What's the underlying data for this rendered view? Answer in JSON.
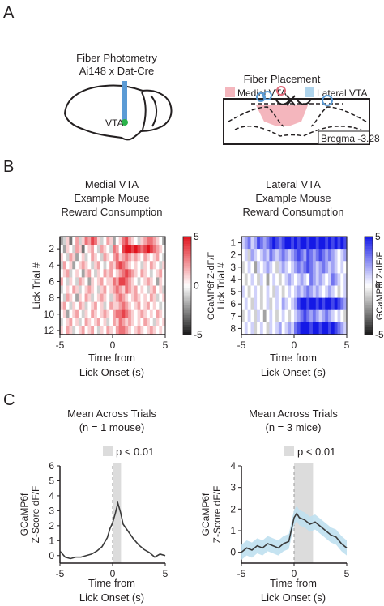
{
  "panels": {
    "a": "A",
    "b": "B",
    "c": "C"
  },
  "panel_a": {
    "fiber_title_1": "Fiber Photometry",
    "fiber_title_2": "Ai148 x Dat-Cre",
    "vta_label": "VTA",
    "placement_title": "Fiber Placement",
    "legend_medial": "Medial VTA",
    "legend_lateral": "Lateral VTA",
    "bregma": "Bregma -3.28",
    "colors": {
      "medial": "#f4b6bd",
      "lateral": "#aed4ec",
      "fiber": "#5b9bd5",
      "vta_dot": "#2bb34a"
    }
  },
  "panel_b": {
    "left_title": [
      "Medial VTA",
      "Example Mouse",
      "Reward Consumption"
    ],
    "right_title": [
      "Lateral VTA",
      "Example Mouse",
      "Reward Consumption"
    ],
    "xlabel_1": "Time from",
    "xlabel_2": "Lick Onset (s)",
    "ylabel": "Lick Trial #",
    "cbar_label": "GCaMP6f  Z-dF/F"
  },
  "panel_c": {
    "left_title": [
      "Mean Across Trials",
      "(n = 1 mouse)"
    ],
    "right_title": [
      "Mean Across Trials",
      "(n = 3 mice)"
    ],
    "sig_label": "p < 0.01",
    "ylabel_1": "GCaMP6f",
    "ylabel_2": "Z-Score dF/F",
    "xlabel_1": "Time from",
    "xlabel_2": "Lick Onset (s)"
  },
  "chart_data": [
    {
      "type": "heatmap",
      "x": [
        -5,
        5
      ],
      "xticks": [
        -5,
        0,
        5
      ],
      "yticks": [
        2,
        4,
        6,
        8,
        10,
        12
      ],
      "rows": 12,
      "cbar_ticks": [
        5,
        0,
        -5
      ],
      "colormap": "gray-white-red",
      "rows_data": [
        [
          -2,
          -1,
          1,
          -3,
          0,
          2,
          -1,
          1,
          3,
          2,
          4,
          3,
          1,
          -1,
          0,
          2,
          1,
          -2,
          0,
          1,
          3,
          4,
          2,
          1,
          0,
          -1,
          1,
          2,
          3,
          3,
          2,
          1,
          0,
          -2
        ],
        [
          0,
          -2,
          1,
          0,
          -1,
          2,
          1,
          -3,
          0,
          1,
          2,
          0,
          -1,
          2,
          1,
          0,
          -1,
          3,
          2,
          0,
          4,
          5,
          5,
          4,
          5,
          4,
          3,
          4,
          5,
          4,
          3,
          2,
          1,
          0
        ],
        [
          1,
          0,
          -1,
          2,
          1,
          -2,
          0,
          1,
          -1,
          0,
          2,
          1,
          0,
          -1,
          2,
          1,
          0,
          2,
          3,
          1,
          2,
          3,
          2,
          1,
          2,
          1,
          0,
          2,
          1,
          0,
          1,
          2,
          0,
          -1
        ],
        [
          -1,
          2,
          0,
          1,
          -2,
          0,
          1,
          2,
          1,
          0,
          -1,
          1,
          2,
          0,
          -1,
          0,
          2,
          1,
          3,
          4,
          3,
          2,
          1,
          0,
          1,
          0,
          -1,
          1,
          0,
          2,
          1,
          0,
          -1,
          1
        ],
        [
          0,
          1,
          2,
          -1,
          0,
          1,
          0,
          -2,
          1,
          2,
          0,
          -1,
          1,
          0,
          2,
          1,
          2,
          0,
          1,
          2,
          3,
          4,
          3,
          2,
          1,
          0,
          2,
          1,
          0,
          -1,
          0,
          1,
          2,
          0
        ],
        [
          2,
          0,
          -1,
          1,
          0,
          -1,
          2,
          1,
          0,
          -2,
          1,
          0,
          1,
          2,
          0,
          1,
          1,
          3,
          2,
          4,
          4,
          3,
          2,
          1,
          0,
          -1,
          0,
          1,
          2,
          1,
          0,
          -2,
          1,
          0
        ],
        [
          -1,
          0,
          1,
          0,
          2,
          1,
          -1,
          0,
          1,
          2,
          1,
          0,
          -1,
          1,
          2,
          0,
          1,
          2,
          3,
          2,
          1,
          3,
          2,
          1,
          2,
          0,
          1,
          0,
          -1,
          1,
          2,
          0,
          1,
          -1
        ],
        [
          0,
          -1,
          2,
          1,
          0,
          -2,
          1,
          0,
          2,
          1,
          -1,
          0,
          1,
          2,
          1,
          0,
          -1,
          1,
          2,
          3,
          2,
          1,
          0,
          1,
          2,
          1,
          0,
          1,
          0,
          2,
          1,
          -1,
          0,
          1
        ],
        [
          1,
          2,
          0,
          -1,
          1,
          0,
          2,
          1,
          -1,
          0,
          1,
          2,
          0,
          1,
          -1,
          0,
          2,
          1,
          1,
          2,
          3,
          2,
          1,
          0,
          1,
          2,
          0,
          1,
          2,
          0,
          1,
          0,
          -1,
          0
        ],
        [
          0,
          1,
          -2,
          0,
          1,
          2,
          0,
          -1,
          1,
          0,
          2,
          1,
          0,
          1,
          2,
          1,
          0,
          2,
          3,
          3,
          4,
          3,
          2,
          1,
          0,
          1,
          2,
          1,
          0,
          1,
          0,
          2,
          1,
          0
        ],
        [
          -1,
          0,
          1,
          2,
          0,
          1,
          -1,
          0,
          2,
          1,
          0,
          1,
          2,
          0,
          1,
          -1,
          0,
          2,
          1,
          3,
          2,
          1,
          2,
          1,
          0,
          1,
          0,
          2,
          1,
          0,
          -1,
          1,
          0,
          1
        ],
        [
          1,
          0,
          2,
          1,
          -1,
          0,
          1,
          2,
          0,
          1,
          2,
          0,
          -1,
          1,
          0,
          2,
          1,
          0,
          2,
          3,
          3,
          2,
          1,
          0,
          1,
          2,
          1,
          0,
          1,
          2,
          1,
          0,
          1,
          0
        ]
      ]
    },
    {
      "type": "heatmap",
      "x": [
        -5,
        5
      ],
      "xticks": [
        -5,
        0,
        5
      ],
      "yticks": [
        1,
        2,
        3,
        4,
        5,
        6,
        7,
        8
      ],
      "rows": 8,
      "cbar_ticks": [
        5,
        0,
        -5
      ],
      "colormap": "gray-white-blue",
      "rows_data": [
        [
          1,
          2,
          3,
          1,
          2,
          4,
          3,
          2,
          3,
          4,
          5,
          4,
          3,
          4,
          5,
          5,
          4,
          5,
          4,
          5,
          5,
          4,
          5,
          5,
          4,
          5,
          5,
          4,
          5,
          4,
          5,
          4,
          5,
          4
        ],
        [
          0,
          1,
          -1,
          2,
          1,
          0,
          1,
          2,
          1,
          3,
          2,
          1,
          2,
          3,
          2,
          1,
          2,
          3,
          4,
          3,
          2,
          4,
          3,
          2,
          3,
          4,
          3,
          2,
          3,
          2,
          1,
          0,
          1,
          2
        ],
        [
          -1,
          0,
          1,
          0,
          -2,
          1,
          0,
          1,
          2,
          1,
          0,
          -1,
          1,
          2,
          1,
          0,
          1,
          2,
          3,
          2,
          3,
          4,
          3,
          2,
          1,
          2,
          3,
          2,
          1,
          2,
          1,
          0,
          1,
          0
        ],
        [
          0,
          -1,
          0,
          1,
          0,
          -1,
          1,
          0,
          -2,
          0,
          1,
          0,
          -1,
          0,
          1,
          2,
          1,
          0,
          1,
          2,
          1,
          0,
          3,
          2,
          1,
          2,
          1,
          0,
          1,
          3,
          2,
          1,
          0,
          1
        ],
        [
          1,
          0,
          -1,
          0,
          1,
          0,
          -1,
          0,
          1,
          0,
          -1,
          1,
          0,
          -1,
          0,
          1,
          0,
          1,
          2,
          1,
          2,
          3,
          2,
          1,
          2,
          1,
          0,
          1,
          2,
          1,
          0,
          -1,
          0,
          1
        ],
        [
          0,
          1,
          0,
          -1,
          1,
          0,
          -1,
          0,
          1,
          -1,
          0,
          1,
          0,
          2,
          1,
          0,
          1,
          2,
          4,
          5,
          5,
          4,
          5,
          5,
          4,
          5,
          4,
          5,
          5,
          4,
          5,
          4,
          3,
          2
        ],
        [
          -1,
          0,
          1,
          0,
          -1,
          1,
          0,
          -2,
          0,
          1,
          0,
          -1,
          0,
          1,
          0,
          -1,
          0,
          1,
          2,
          3,
          4,
          3,
          2,
          3,
          2,
          1,
          2,
          3,
          2,
          1,
          0,
          1,
          0,
          -1
        ],
        [
          0,
          1,
          0,
          1,
          -1,
          0,
          1,
          0,
          -1,
          1,
          0,
          1,
          2,
          0,
          1,
          2,
          1,
          3,
          4,
          5,
          5,
          5,
          4,
          5,
          5,
          4,
          5,
          5,
          4,
          5,
          4,
          3,
          2,
          1
        ]
      ]
    },
    {
      "type": "line",
      "x": [
        -5,
        -4.5,
        -4,
        -3.5,
        -3,
        -2.5,
        -2,
        -1.5,
        -1,
        -0.5,
        -0.25,
        0,
        0.25,
        0.5,
        0.75,
        1,
        1.5,
        2,
        2.5,
        3,
        3.5,
        4,
        4.5,
        5
      ],
      "y": [
        0.3,
        -0.1,
        -0.2,
        -0.1,
        -0.1,
        0,
        0.1,
        0.3,
        0.6,
        1.2,
        1.8,
        2.2,
        2.8,
        3.5,
        2.9,
        2.1,
        1.6,
        1.1,
        0.7,
        0.4,
        0.2,
        -0.1,
        0.1,
        0
      ],
      "xticks": [
        -5,
        0,
        5
      ],
      "yticks": [
        6,
        5,
        4,
        3,
        2,
        1,
        0
      ],
      "ylim": [
        -0.5,
        6
      ],
      "significance_window": [
        0,
        0.8
      ]
    },
    {
      "type": "line",
      "x": [
        -5,
        -4.5,
        -4,
        -3.5,
        -3,
        -2.5,
        -2,
        -1.5,
        -1,
        -0.5,
        0,
        0.25,
        0.5,
        1,
        1.5,
        2,
        2.5,
        3,
        3.5,
        4,
        4.5,
        5
      ],
      "y": [
        0,
        0.2,
        0.1,
        0.3,
        0.2,
        0.4,
        0.3,
        0.2,
        0.4,
        0.5,
        1.6,
        1.8,
        1.6,
        1.5,
        1.3,
        1.4,
        1.2,
        1.0,
        0.8,
        0.7,
        0.4,
        0.2
      ],
      "xticks": [
        -5,
        0,
        5
      ],
      "yticks": [
        4,
        3,
        2,
        1,
        0
      ],
      "ylim": [
        -0.5,
        4
      ],
      "significance_window": [
        0,
        1.8
      ]
    }
  ]
}
